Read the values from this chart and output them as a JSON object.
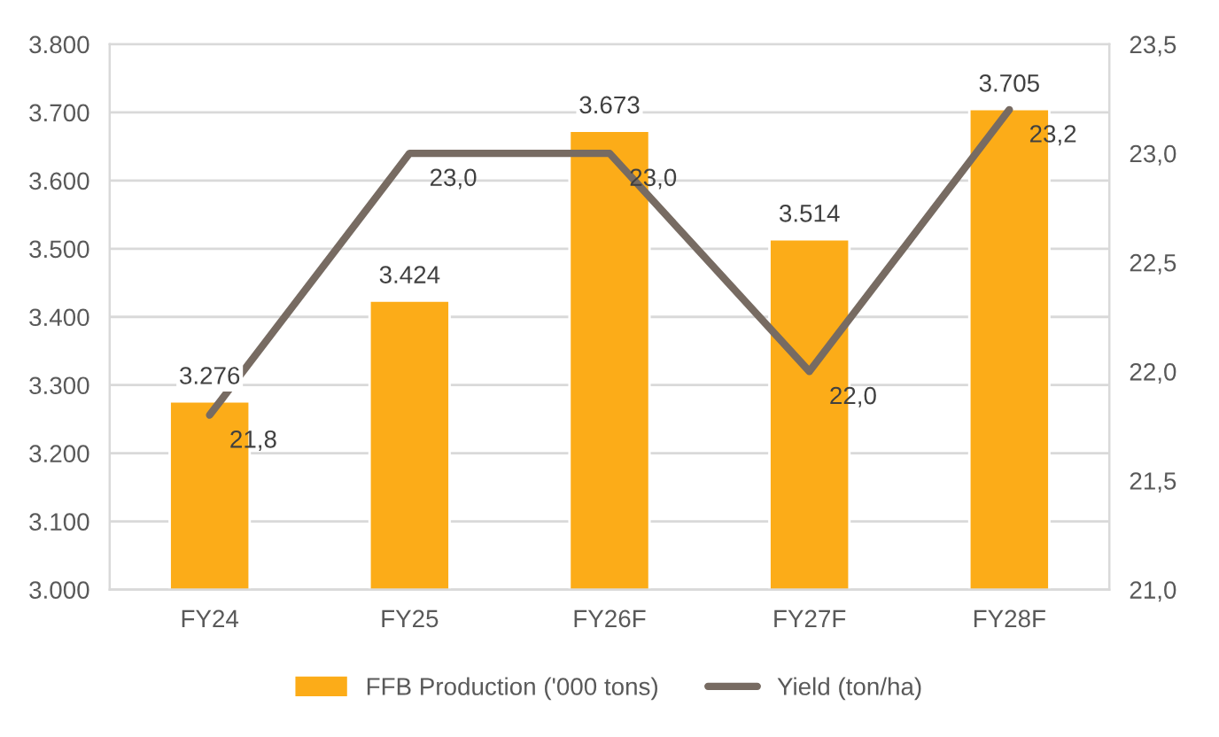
{
  "chart_data": {
    "type": "bar",
    "categories": [
      "FY24",
      "FY25",
      "FY26F",
      "FY27F",
      "FY28F"
    ],
    "series": [
      {
        "name": "FFB Production ('000 tons)",
        "color": "#fcac18",
        "values": [
          3276,
          3424,
          3673,
          3514,
          3705
        ],
        "value_labels": [
          "3.276",
          "3.424",
          "3.673",
          "3.514",
          "3.705"
        ]
      },
      {
        "name": "Yield (ton/ha)",
        "type": "line",
        "axis": "y2",
        "color": "#776b62",
        "values": [
          21.8,
          23.0,
          23.0,
          22.0,
          23.2
        ],
        "value_labels": [
          "21,8",
          "23,0",
          "23,0",
          "22,0",
          "23,2"
        ]
      }
    ],
    "ylim": [
      3000,
      3800
    ],
    "yticks": [
      {
        "value": 3000,
        "label": "3.000"
      },
      {
        "value": 3100,
        "label": "3.100"
      },
      {
        "value": 3200,
        "label": "3.200"
      },
      {
        "value": 3300,
        "label": "3.300"
      },
      {
        "value": 3400,
        "label": "3.400"
      },
      {
        "value": 3500,
        "label": "3.500"
      },
      {
        "value": 3600,
        "label": "3.600"
      },
      {
        "value": 3700,
        "label": "3.700"
      },
      {
        "value": 3800,
        "label": "3.800"
      }
    ],
    "y2lim": [
      21.0,
      23.5
    ],
    "y2ticks": [
      {
        "value": 21.0,
        "label": "21,0"
      },
      {
        "value": 21.5,
        "label": "21,5"
      },
      {
        "value": 22.0,
        "label": "22,0"
      },
      {
        "value": 22.5,
        "label": "22,5"
      },
      {
        "value": 23.0,
        "label": "23,0"
      },
      {
        "value": 23.5,
        "label": "23,5"
      }
    ],
    "grid": "y",
    "legend": "bottom",
    "marker": "none",
    "line_style": "solid"
  }
}
